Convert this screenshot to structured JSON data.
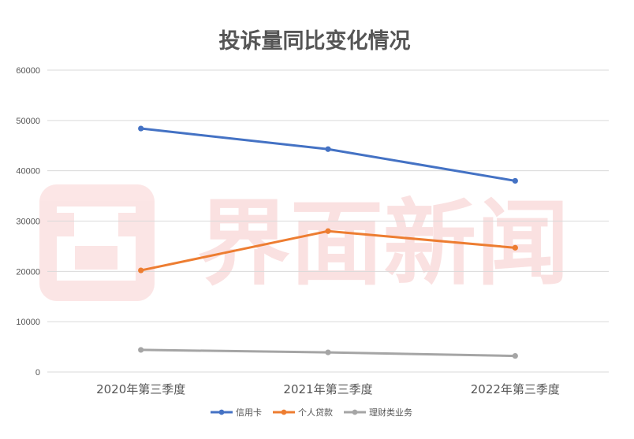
{
  "chart_data": {
    "type": "line",
    "title": "投诉量同比变化情况",
    "xlabel": "",
    "ylabel": "",
    "categories": [
      "2020年第三季度",
      "2021年第三季度",
      "2022年第三季度"
    ],
    "ylim": [
      0,
      60000
    ],
    "yticks": [
      0,
      10000,
      20000,
      30000,
      40000,
      50000,
      60000
    ],
    "grid": true,
    "legend_position": "bottom",
    "series": [
      {
        "name": "信用卡",
        "values": [
          48400,
          44300,
          38000
        ],
        "color": "#4472c4"
      },
      {
        "name": "个人贷款",
        "values": [
          20200,
          28000,
          24700
        ],
        "color": "#ed7d31"
      },
      {
        "name": "理财类业务",
        "values": [
          4400,
          3900,
          3200
        ],
        "color": "#a5a5a5"
      }
    ]
  },
  "watermark": {
    "text": "界面新闻",
    "logo_icon": "jiemian-logo-icon",
    "color": "#e84c4c"
  }
}
